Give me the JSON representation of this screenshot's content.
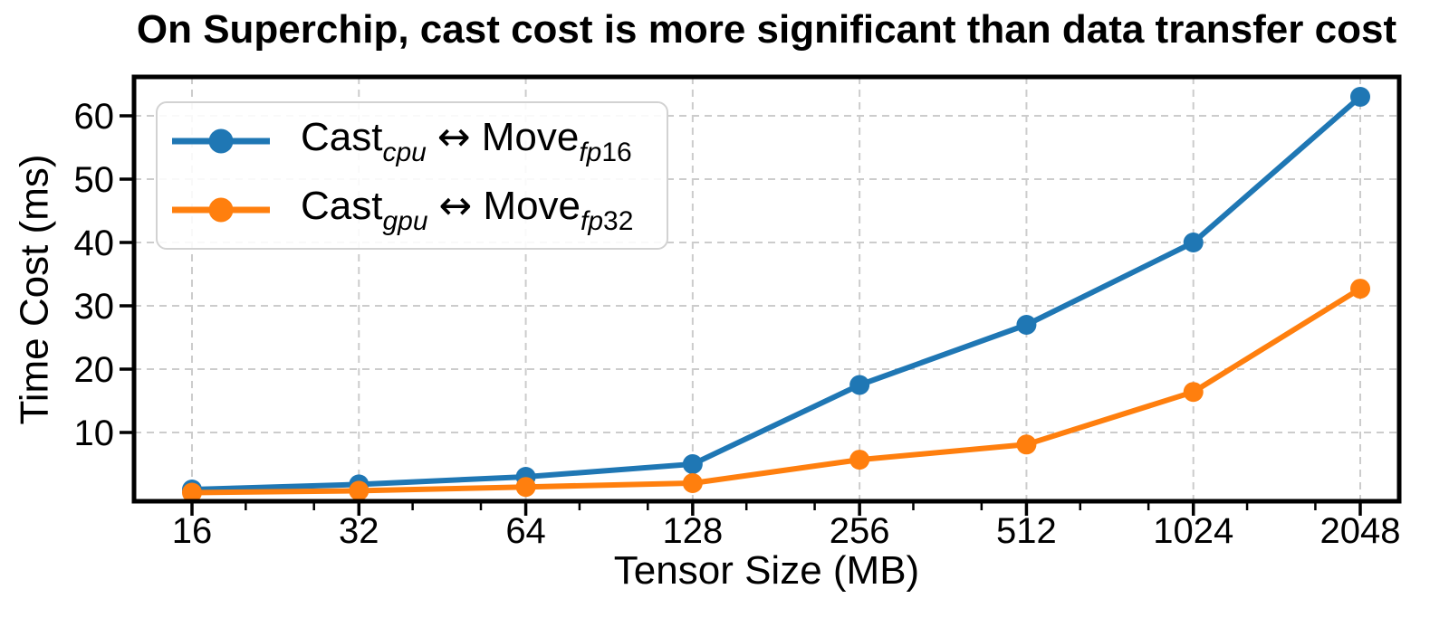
{
  "chart_data": {
    "type": "line",
    "title": "On Superchip, cast cost is more significant than data transfer cost",
    "xlabel": "Tensor Size (MB)",
    "ylabel": "Time Cost (ms)",
    "x_scale": "log2",
    "categories": [
      "16",
      "32",
      "64",
      "128",
      "256",
      "512",
      "1024",
      "2048"
    ],
    "yticks": [
      10,
      20,
      30,
      40,
      50,
      60
    ],
    "ylim": [
      0,
      66
    ],
    "grid": "dashed both axes",
    "legend_position": "upper left",
    "series": [
      {
        "name": "Cast_cpu ↔ Move_fp16",
        "color": "#1f77b4",
        "values": [
          1.0,
          1.8,
          3.0,
          5.0,
          17.5,
          27.0,
          40.0,
          63.0
        ],
        "label_parts": {
          "word1": "Cast",
          "sub1": "cpu",
          "arrow": "↔",
          "word2": "Move",
          "sub2_italic": "fp",
          "sub2_num": "16"
        }
      },
      {
        "name": "Cast_gpu ↔ Move_fp32",
        "color": "#ff7f0e",
        "values": [
          0.5,
          0.8,
          1.4,
          2.0,
          5.7,
          8.1,
          16.4,
          32.7
        ],
        "label_parts": {
          "word1": "Cast",
          "sub1": "gpu",
          "arrow": "↔",
          "word2": "Move",
          "sub2_italic": "fp",
          "sub2_num": "32"
        }
      }
    ]
  },
  "style": {
    "grid_color": "#cccccc",
    "axis_color": "#000000",
    "legend_border_color": "#d2d2d2",
    "background": "#ffffff"
  }
}
